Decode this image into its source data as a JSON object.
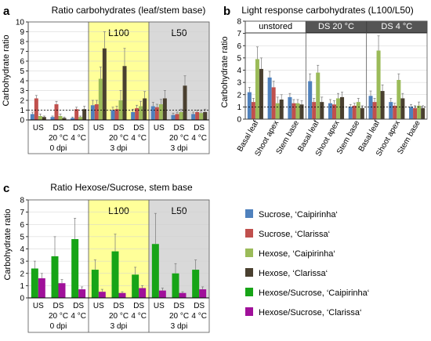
{
  "panels": {
    "a": "a",
    "b": "b",
    "c": "c"
  },
  "series_colors": {
    "sucrose_cai": "#4f81bd",
    "sucrose_cla": "#c0504d",
    "hexose_cai": "#9bbb59",
    "hexose_cla": "#4a4030",
    "hs_cai": "#17a417",
    "hs_cla": "#a0109a"
  },
  "region_colors": {
    "L100": "#ffff99",
    "L50": "#d9d9d9"
  },
  "chart_data": [
    {
      "id": "a",
      "type": "bar",
      "title": "Ratio carbohydrates (leaf/stem base)",
      "ylabel": "Carbohydrate ratio",
      "ylim": [
        0,
        10
      ],
      "yticks": [
        "0",
        "1",
        "2",
        "3",
        "4",
        "5",
        "6",
        "7",
        "8",
        "9",
        "10"
      ],
      "reference_line": 1,
      "categories": [
        "US",
        "DS 20 °C",
        "DS 4 °C",
        "US",
        "DS 20 °C",
        "DS 4 °C",
        "US",
        "DS 20 °C",
        "DS 4 °C"
      ],
      "groups": [
        "0 dpi",
        "3 dpi",
        "3 dpi"
      ],
      "regions": [
        "",
        "L100",
        "L50"
      ],
      "series": [
        {
          "key": "sucrose_cai",
          "values": [
            0.6,
            0.3,
            0.2,
            1.5,
            1.0,
            0.8,
            1.4,
            0.5,
            0.6
          ],
          "errors": [
            0.2,
            0.1,
            0.1,
            0.5,
            0.3,
            0.3,
            0.4,
            0.2,
            0.2
          ]
        },
        {
          "key": "sucrose_cla",
          "values": [
            2.2,
            1.6,
            1.1,
            1.6,
            1.1,
            1.2,
            1.3,
            0.6,
            0.8
          ],
          "errors": [
            0.3,
            0.3,
            0.2,
            0.4,
            0.3,
            0.3,
            0.3,
            0.2,
            0.2
          ]
        },
        {
          "key": "hexose_cai",
          "values": [
            0.4,
            0.4,
            0.3,
            4.2,
            2.0,
            1.4,
            1.6,
            0.8,
            0.7
          ],
          "errors": [
            0.2,
            0.2,
            0.1,
            1.2,
            1.0,
            0.5,
            0.5,
            0.3,
            0.3
          ]
        },
        {
          "key": "hexose_cla",
          "values": [
            0.3,
            0.2,
            1.1,
            7.3,
            5.5,
            2.2,
            2.2,
            3.5,
            0.8
          ],
          "errors": [
            0.1,
            0.1,
            0.3,
            1.7,
            1.8,
            0.7,
            0.8,
            1.0,
            0.3
          ]
        }
      ]
    },
    {
      "id": "b",
      "type": "bar",
      "title": "Light response carbohydrates (L100/L50)",
      "ylabel": "Carbohydrate ratio",
      "ylim": [
        0,
        8
      ],
      "yticks": [
        "0",
        "1",
        "2",
        "3",
        "4",
        "5",
        "6",
        "7",
        "8"
      ],
      "reference_line": 1,
      "categories": [
        "Basal leaf",
        "Shoot apex",
        "Stem base",
        "Basal leaf",
        "Shoot apex",
        "Stem base",
        "Basal leaf",
        "Shoot apex",
        "Stem base"
      ],
      "groups": [
        "unstored",
        "DS 20 °C",
        "DS 4 °C"
      ],
      "series": [
        {
          "key": "sucrose_cai",
          "values": [
            2.2,
            3.4,
            1.8,
            3.1,
            1.3,
            1.0,
            1.9,
            1.4,
            1.0
          ],
          "errors": [
            0.4,
            0.5,
            0.3,
            0.6,
            0.3,
            0.2,
            0.4,
            0.3,
            0.2
          ]
        },
        {
          "key": "sucrose_cla",
          "values": [
            1.4,
            2.6,
            1.3,
            1.4,
            1.2,
            1.1,
            1.4,
            1.1,
            0.9
          ],
          "errors": [
            0.3,
            0.5,
            0.3,
            0.3,
            0.3,
            0.2,
            0.3,
            0.2,
            0.2
          ]
        },
        {
          "key": "hexose_cai",
          "values": [
            4.9,
            1.3,
            1.3,
            3.8,
            1.7,
            1.4,
            5.6,
            3.2,
            1.1
          ],
          "errors": [
            1.0,
            0.5,
            0.3,
            0.6,
            0.4,
            0.3,
            1.2,
            0.5,
            0.3
          ]
        },
        {
          "key": "hexose_cla",
          "values": [
            4.1,
            1.6,
            1.2,
            1.4,
            1.8,
            0.9,
            2.3,
            1.7,
            0.9
          ],
          "errors": [
            0.9,
            0.4,
            0.3,
            0.4,
            0.4,
            0.2,
            0.5,
            0.4,
            0.2
          ]
        }
      ]
    },
    {
      "id": "c",
      "type": "bar",
      "title": "Ratio Hexose/Sucrose, stem base",
      "ylabel": "Carbohydrate ratio",
      "ylim": [
        0,
        8
      ],
      "yticks": [
        "0",
        "1",
        "2",
        "3",
        "4",
        "5",
        "6",
        "7",
        "8"
      ],
      "categories": [
        "US",
        "DS 20 °C",
        "DS 4 °C",
        "US",
        "DS 20 °C",
        "DS 4 °C",
        "US",
        "DS 20 °C",
        "DS 4 °C"
      ],
      "groups": [
        "0 dpi",
        "3 dpi",
        "3 dpi"
      ],
      "regions": [
        "",
        "L100",
        "L50"
      ],
      "series": [
        {
          "key": "hs_cai",
          "values": [
            2.4,
            3.4,
            4.8,
            2.3,
            3.8,
            1.9,
            4.4,
            2.0,
            2.3
          ],
          "errors": [
            0.6,
            1.6,
            1.7,
            0.8,
            1.4,
            0.6,
            2.5,
            0.8,
            0.8
          ]
        },
        {
          "key": "hs_cla",
          "values": [
            1.6,
            1.2,
            0.7,
            0.5,
            0.4,
            0.8,
            0.6,
            0.4,
            0.7
          ],
          "errors": [
            0.4,
            0.3,
            0.2,
            0.2,
            0.1,
            0.2,
            0.2,
            0.1,
            0.2
          ]
        }
      ]
    }
  ],
  "legend": [
    {
      "key": "sucrose_cai",
      "label": "Sucrose, ‘Caipirinha‘"
    },
    {
      "key": "sucrose_cla",
      "label": "Sucrose, ‘Clarissa‘"
    },
    {
      "key": "hexose_cai",
      "label": "Hexose, ‘Caipirinha‘"
    },
    {
      "key": "hexose_cla",
      "label": "Hexose, ‘Clarissa‘"
    },
    {
      "key": "hs_cai",
      "label": "Hexose/Sucrose, ‘Caipirinha‘"
    },
    {
      "key": "hs_cla",
      "label": "Hexose/Sucrose, ‘Clarissa‘"
    }
  ]
}
